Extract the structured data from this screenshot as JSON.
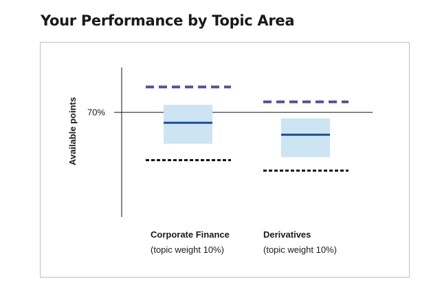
{
  "page": {
    "title": "Your Performance by Topic Area"
  },
  "chart_data": {
    "type": "box",
    "title": "Your Performance by Topic Area",
    "ylabel": "Available points",
    "ylim": [
      0,
      100
    ],
    "reference_line": {
      "value": 70,
      "label": "70%"
    },
    "categories": [
      {
        "name": "Corporate Finance",
        "subtitle": "(topic weight 10%)",
        "upper_dashed": 87,
        "box_top": 75,
        "median": 63,
        "box_bottom": 49,
        "lower_dotted": 38
      },
      {
        "name": "Derivatives",
        "subtitle": "(topic weight 10%)",
        "upper_dashed": 77,
        "box_top": 66,
        "median": 55,
        "box_bottom": 40,
        "lower_dotted": 31
      }
    ],
    "colors": {
      "box_fill": "#cde4f3",
      "median": "#1b4f9c",
      "upper_dashed": "#5b4f9a",
      "lower_dotted": "#111111",
      "axis": "#111111"
    }
  }
}
